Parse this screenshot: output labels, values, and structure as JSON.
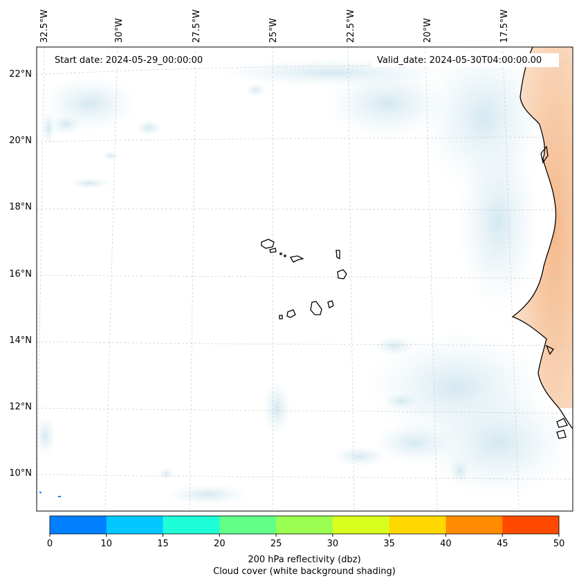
{
  "map": {
    "start_date": "Start date: 2024-05-29_00:00:00",
    "valid_date": "Valid_date: 2024-05-30T04:00:00.00",
    "lon_labels": [
      "32.5°W",
      "30°W",
      "27.5°W",
      "25°W",
      "22.5°W",
      "20°W",
      "17.5°W"
    ],
    "lat_labels": [
      "22°N",
      "20°N",
      "18°N",
      "16°N",
      "14°N",
      "12°N",
      "10°N"
    ]
  },
  "colorbar": {
    "ticks": [
      "0",
      "10",
      "15",
      "20",
      "25",
      "30",
      "35",
      "40",
      "45",
      "50"
    ],
    "colors": [
      "#0080ff",
      "#00c8ff",
      "#1effd8",
      "#62ff88",
      "#9aff50",
      "#d8ff1e",
      "#ffd800",
      "#ff8c00",
      "#ff4a00"
    ],
    "label_line1": "200 hPa reflectivity (dbz)",
    "label_line2": "Cloud cover (white background shading)"
  },
  "colors": {
    "cloud": "#cfe6ef",
    "land_warm": "#f7c9a5",
    "echo": "#0080ff"
  }
}
